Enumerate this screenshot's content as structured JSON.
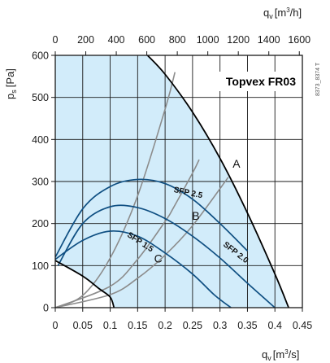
{
  "chart_data": {
    "type": "line",
    "title": "Topvex FR03",
    "side_code": "8373_8374 T",
    "x_label": "q",
    "x_label_sub": "v",
    "x_label_unit": "[m",
    "x_label_sup": "3",
    "x_label_unit_end": "/s]",
    "x2_label": "q",
    "x2_label_sub": "v",
    "x2_label_unit": "[m",
    "x2_label_sup": "3",
    "x2_label_unit_end": "/h]",
    "y_label": "p",
    "y_label_sub": "s",
    "y_label_unit": "[Pa]",
    "xlim": [
      0,
      0.45
    ],
    "ylim": [
      0,
      600
    ],
    "x2lim": [
      0,
      1620
    ],
    "x_ticks": [
      "0",
      "0.05",
      "0.1",
      "0.15",
      "0.2",
      "0.25",
      "0.3",
      "0.35",
      "0.4",
      "0.45"
    ],
    "x2_ticks": [
      "0",
      "200",
      "400",
      "600",
      "800",
      "1000",
      "1200",
      "1400",
      "1600"
    ],
    "y_ticks": [
      "0",
      "100",
      "200",
      "300",
      "400",
      "500",
      "600"
    ],
    "grid": true,
    "operating_area_color": "#d2ecfa",
    "system_curve_color": "#8c8c8c",
    "fan_curve_color": "#0f4f82",
    "boundary_color": "#000000",
    "operating_area": {
      "upper_boundary": [
        [
          0.168,
          600
        ],
        [
          0.2,
          555
        ],
        [
          0.25,
          465
        ],
        [
          0.3,
          355
        ],
        [
          0.35,
          225
        ],
        [
          0.4,
          80
        ],
        [
          0.425,
          0
        ]
      ],
      "lower_boundary": [
        [
          0,
          112
        ],
        [
          0.05,
          75
        ],
        [
          0.08,
          45
        ],
        [
          0.1,
          25
        ],
        [
          0.107,
          0
        ]
      ]
    },
    "system_curves": [
      {
        "name": "A",
        "label_at": [
          0.323,
          333
        ],
        "points": [
          [
            0,
            0
          ],
          [
            0.1,
            31
          ],
          [
            0.15,
            70
          ],
          [
            0.2,
            125
          ],
          [
            0.25,
            195
          ],
          [
            0.315,
            310
          ]
        ]
      },
      {
        "name": "B",
        "label_at": [
          0.249,
          209
        ],
        "points": [
          [
            0,
            0
          ],
          [
            0.1,
            51
          ],
          [
            0.15,
            115
          ],
          [
            0.2,
            205
          ],
          [
            0.215,
            237
          ],
          [
            0.25,
            320
          ],
          [
            0.262,
            352
          ]
        ]
      },
      {
        "name": "C",
        "label_at": [
          0.18,
          107
        ],
        "points": [
          [
            0,
            0
          ],
          [
            0.05,
            29
          ],
          [
            0.1,
            118
          ],
          [
            0.15,
            266
          ],
          [
            0.2,
            472
          ],
          [
            0.218,
            560
          ]
        ]
      }
    ],
    "fan_curves": [
      {
        "name": "SFP 2.5",
        "label_at": [
          0.215,
          275
        ],
        "points": [
          [
            0,
            120
          ],
          [
            0.05,
            235
          ],
          [
            0.1,
            288
          ],
          [
            0.15,
            305
          ],
          [
            0.2,
            295
          ],
          [
            0.25,
            258
          ],
          [
            0.3,
            200
          ],
          [
            0.35,
            135
          ]
        ]
      },
      {
        "name": "SFP 2.0",
        "label_at": [
          0.305,
          148
        ],
        "points": [
          [
            0.005,
            100
          ],
          [
            0.05,
            200
          ],
          [
            0.1,
            240
          ],
          [
            0.15,
            238
          ],
          [
            0.2,
            212
          ],
          [
            0.25,
            170
          ],
          [
            0.3,
            118
          ],
          [
            0.35,
            58
          ],
          [
            0.4,
            0
          ]
        ]
      },
      {
        "name": "SFP 1.5",
        "label_at": [
          0.13,
          170
        ],
        "points": [
          [
            0,
            115
          ],
          [
            0.05,
            160
          ],
          [
            0.1,
            182
          ],
          [
            0.15,
            170
          ],
          [
            0.2,
            130
          ],
          [
            0.25,
            80
          ],
          [
            0.29,
            30
          ],
          [
            0.32,
            0
          ]
        ]
      }
    ]
  }
}
